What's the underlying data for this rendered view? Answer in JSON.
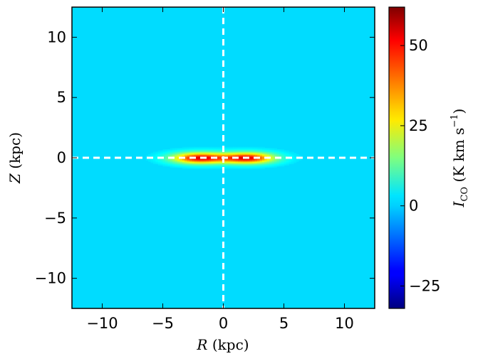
{
  "chart_data": {
    "type": "heatmap",
    "xlabel_var": "R",
    "xlabel_unit": "(kpc)",
    "ylabel_var": "Z",
    "ylabel_unit": "(kpc)",
    "xlim": [
      -12.5,
      12.5
    ],
    "ylim": [
      -12.5,
      12.5
    ],
    "xticks": [
      -10,
      -5,
      0,
      5,
      10
    ],
    "xtick_labels": [
      "−10",
      "−5",
      "0",
      "5",
      "10"
    ],
    "yticks": [
      10,
      5,
      0,
      -5,
      -10
    ],
    "ytick_labels": [
      "10",
      "5",
      "0",
      "−5",
      "−10"
    ],
    "colorbar": {
      "label_var": "I",
      "label_sub": "CO",
      "label_unit": "(K km s",
      "label_exp": "−1",
      "label_close": ")",
      "vmin": -32,
      "vmax": 62,
      "ticks": [
        50,
        25,
        0,
        -25
      ],
      "tick_labels": [
        "50",
        "25",
        "0",
        "−25"
      ],
      "colormap": "jet"
    },
    "background_value": 0,
    "peak_value": 62,
    "emission": {
      "description_model": "thin disk with two peaks",
      "peaks_R_kpc": [
        -2,
        2
      ],
      "radial_scale_kpc": 2.2,
      "vertical_scale_kpc": 0.45,
      "extent_R_kpc": 5.5
    },
    "guides": {
      "x_at": 0,
      "y_at": 0,
      "color": "#ffffff",
      "style": "dashed"
    }
  }
}
